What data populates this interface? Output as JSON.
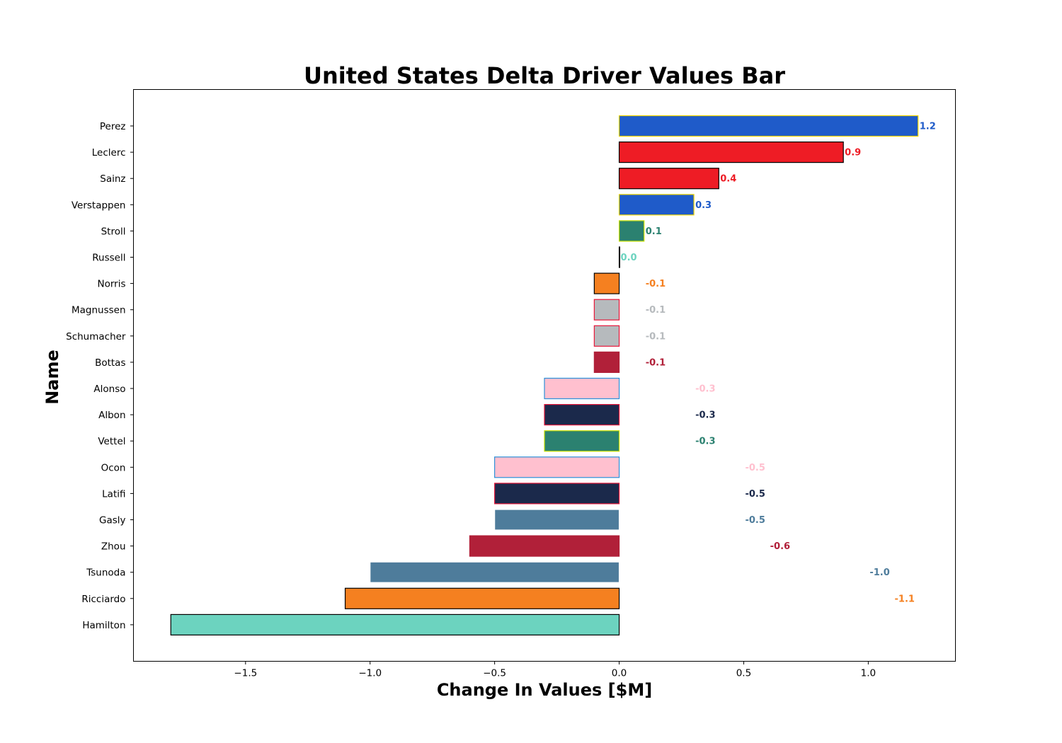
{
  "chart_data": {
    "type": "bar",
    "orientation": "horizontal",
    "title": "United States Delta Driver Values Bar",
    "xlabel": "Change In Values [$M]",
    "ylabel": "Name",
    "xlim": [
      -1.95,
      1.35
    ],
    "x_ticks": [
      -1.5,
      -1.0,
      -0.5,
      0.0,
      0.5,
      1.0
    ],
    "x_tick_labels": [
      "−1.5",
      "−1.0",
      "−0.5",
      "0.0",
      "0.5",
      "1.0"
    ],
    "grid": false,
    "legend": "none",
    "bars": [
      {
        "name": "Perez",
        "value": 1.2,
        "label": "1.2",
        "fill": "#1f5bc9",
        "edge": "#f2d600",
        "label_color": "#1f5bc9"
      },
      {
        "name": "Leclerc",
        "value": 0.9,
        "label": "0.9",
        "fill": "#ee1c25",
        "edge": "#000000",
        "label_color": "#ee1c25"
      },
      {
        "name": "Sainz",
        "value": 0.4,
        "label": "0.4",
        "fill": "#ee1c25",
        "edge": "#000000",
        "label_color": "#ee1c25"
      },
      {
        "name": "Verstappen",
        "value": 0.3,
        "label": "0.3",
        "fill": "#1f5bc9",
        "edge": "#f2d600",
        "label_color": "#1f5bc9"
      },
      {
        "name": "Stroll",
        "value": 0.1,
        "label": "0.1",
        "fill": "#2b8170",
        "edge": "#c8e000",
        "label_color": "#2b8170"
      },
      {
        "name": "Russell",
        "value": 0.0,
        "label": "0.0",
        "fill": "#6cd3bf",
        "edge": "#000000",
        "label_color": "#6cd3bf"
      },
      {
        "name": "Norris",
        "value": -0.1,
        "label": "-0.1",
        "fill": "#f58020",
        "edge": "#000000",
        "label_color": "#f58020"
      },
      {
        "name": "Magnussen",
        "value": -0.1,
        "label": "-0.1",
        "fill": "#b6babd",
        "edge": "#e8173a",
        "label_color": "#b6babd"
      },
      {
        "name": "Schumacher",
        "value": -0.1,
        "label": "-0.1",
        "fill": "#b6babd",
        "edge": "#e8173a",
        "label_color": "#b6babd"
      },
      {
        "name": "Bottas",
        "value": -0.1,
        "label": "-0.1",
        "fill": "#b12039",
        "edge": "#b12039",
        "label_color": "#b12039"
      },
      {
        "name": "Alonso",
        "value": -0.3,
        "label": "-0.3",
        "fill": "#ffc0cf",
        "edge": "#2b90d9",
        "label_color": "#ffc0cf"
      },
      {
        "name": "Albon",
        "value": -0.3,
        "label": "-0.3",
        "fill": "#1b294b",
        "edge": "#e8173a",
        "label_color": "#1b294b"
      },
      {
        "name": "Vettel",
        "value": -0.3,
        "label": "-0.3",
        "fill": "#2b8170",
        "edge": "#c8e000",
        "label_color": "#2b8170"
      },
      {
        "name": "Ocon",
        "value": -0.5,
        "label": "-0.5",
        "fill": "#ffc0cf",
        "edge": "#2b90d9",
        "label_color": "#ffc0cf"
      },
      {
        "name": "Latifi",
        "value": -0.5,
        "label": "-0.5",
        "fill": "#1b294b",
        "edge": "#e8173a",
        "label_color": "#1b294b"
      },
      {
        "name": "Gasly",
        "value": -0.5,
        "label": "-0.5",
        "fill": "#4e7c9b",
        "edge": "#ffffff",
        "label_color": "#4e7c9b"
      },
      {
        "name": "Zhou",
        "value": -0.6,
        "label": "-0.6",
        "fill": "#b12039",
        "edge": "#b12039",
        "label_color": "#b12039"
      },
      {
        "name": "Tsunoda",
        "value": -1.0,
        "label": "-1.0",
        "fill": "#4e7c9b",
        "edge": "#ffffff",
        "label_color": "#4e7c9b"
      },
      {
        "name": "Ricciardo",
        "value": -1.1,
        "label": "-1.1",
        "fill": "#f58020",
        "edge": "#000000",
        "label_color": "#f58020"
      },
      {
        "name": "Hamilton",
        "value": -1.8,
        "label": "",
        "fill": "#6cd3bf",
        "edge": "#000000",
        "label_color": "#6cd3bf"
      }
    ]
  }
}
